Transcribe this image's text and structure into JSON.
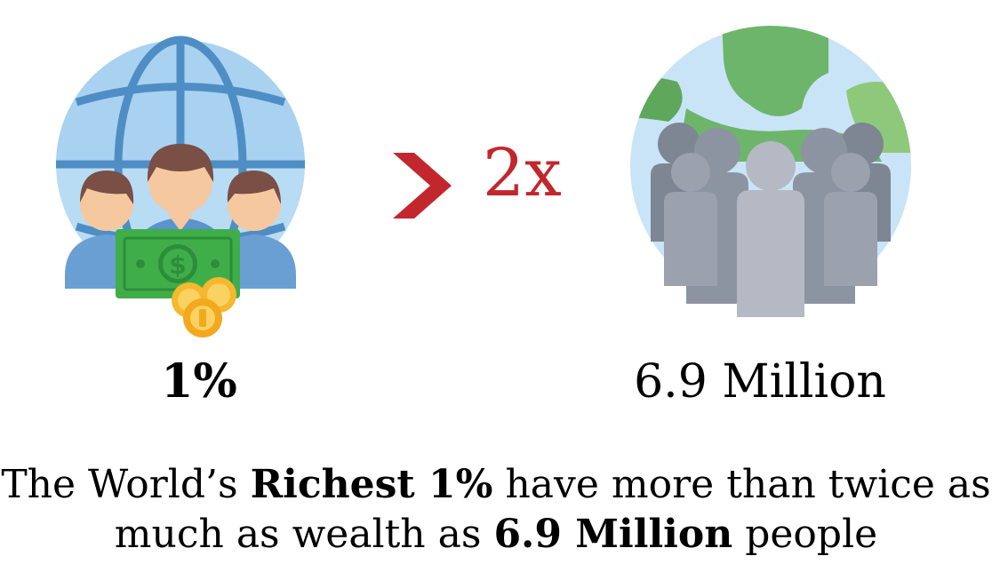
{
  "left": {
    "label": "1%"
  },
  "comparison": {
    "symbol": ">",
    "multiplier": "2x"
  },
  "right": {
    "label": "6.9 Million"
  },
  "caption": {
    "line1_pre": "The World’s ",
    "line1_bold": "Richest 1%",
    "line1_post": " have more than twice as",
    "line2_pre": "much as wealth as ",
    "line2_bold": "6.9 Million",
    "line2_post": " people"
  },
  "icons": {
    "left": "globe-people-money-icon",
    "right": "earth-crowd-icon"
  },
  "colors": {
    "accent": "#c1272d",
    "globe_blue": "#b8dcf4",
    "globe_lines": "#4f8ec4",
    "money_green": "#3fae49",
    "earth_green": "#6db56b",
    "crowd_gray": "#7e8593"
  }
}
